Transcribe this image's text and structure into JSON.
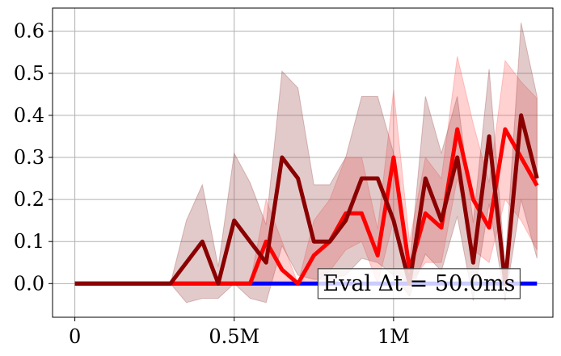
{
  "chart_data": {
    "type": "line",
    "title": "",
    "xlabel": "",
    "ylabel": "",
    "xlim": [
      -70000,
      1500000
    ],
    "ylim": [
      -0.08,
      0.655
    ],
    "grid": true,
    "x_ticks": [
      {
        "value": 0,
        "label": "0"
      },
      {
        "value": 500000,
        "label": "0.5M"
      },
      {
        "value": 1000000,
        "label": "1M"
      }
    ],
    "y_ticks": [
      {
        "value": 0.0,
        "label": "0.0"
      },
      {
        "value": 0.1,
        "label": "0.1"
      },
      {
        "value": 0.2,
        "label": "0.2"
      },
      {
        "value": 0.3,
        "label": "0.3"
      },
      {
        "value": 0.4,
        "label": "0.4"
      },
      {
        "value": 0.5,
        "label": "0.5"
      },
      {
        "value": 0.6,
        "label": "0.6"
      }
    ],
    "annotation": {
      "text": "Eval Δt = 50.0ms",
      "x": 1080000,
      "y": 0.0
    },
    "series": [
      {
        "color": "#0000ff",
        "band_color": "#0000ff",
        "x": [
          0,
          50000,
          100000,
          150000,
          200000,
          250000,
          300000,
          350000,
          400000,
          450000,
          500000,
          550000,
          600000,
          650000,
          700000,
          750000,
          800000,
          850000,
          900000,
          950000,
          1000000,
          1050000,
          1100000,
          1150000,
          1200000,
          1250000,
          1300000,
          1350000,
          1400000,
          1450000
        ],
        "values": [
          0,
          0,
          0,
          0,
          0,
          0,
          0,
          0,
          0,
          0,
          0,
          0,
          0,
          0,
          0,
          0,
          0,
          0,
          0,
          0,
          0,
          0,
          0,
          0,
          0,
          0,
          0,
          0,
          0,
          0
        ],
        "lower": [
          0,
          0,
          0,
          0,
          0,
          0,
          0,
          0,
          0,
          0,
          0,
          0,
          0,
          0,
          0,
          0,
          0,
          0,
          0,
          0,
          0,
          0,
          0,
          0,
          0,
          0,
          0,
          0,
          0,
          0
        ],
        "upper": [
          0,
          0,
          0,
          0,
          0,
          0,
          0,
          0,
          0,
          0,
          0,
          0,
          0,
          0,
          0,
          0,
          0,
          0,
          0,
          0,
          0,
          0,
          0,
          0,
          0,
          0,
          0,
          0,
          0,
          0
        ]
      },
      {
        "color": "#ff0000",
        "band_color": "#ff6666",
        "x": [
          0,
          50000,
          100000,
          150000,
          200000,
          250000,
          300000,
          350000,
          400000,
          450000,
          500000,
          550000,
          600000,
          650000,
          700000,
          750000,
          800000,
          850000,
          900000,
          950000,
          1000000,
          1050000,
          1100000,
          1150000,
          1200000,
          1250000,
          1300000,
          1350000,
          1400000,
          1450000
        ],
        "values": [
          0,
          0,
          0,
          0,
          0,
          0,
          0,
          0,
          0,
          0,
          0,
          0,
          0.1,
          0.033,
          0,
          0.067,
          0.1,
          0.167,
          0.167,
          0.067,
          0.3,
          0.033,
          0.167,
          0.133,
          0.367,
          0.2,
          0.133,
          0.367,
          0.3,
          0.233
        ],
        "lower": [
          0,
          0,
          0,
          0,
          0,
          0,
          0,
          0,
          0,
          0,
          0,
          0,
          0,
          0,
          0,
          0,
          0.03,
          0.08,
          0.1,
          0,
          0.15,
          0,
          0.05,
          0.05,
          0.25,
          0.08,
          0.05,
          0.2,
          0.15,
          0.08
        ],
        "upper": [
          0,
          0,
          0,
          0,
          0,
          0,
          0,
          0,
          0,
          0,
          0,
          0,
          0.2,
          0.1,
          0,
          0.15,
          0.2,
          0.3,
          0.3,
          0.13,
          0.46,
          0.1,
          0.3,
          0.25,
          0.54,
          0.38,
          0.24,
          0.53,
          0.48,
          0.44
        ]
      },
      {
        "color": "#8b0000",
        "band_color": "#a05050",
        "x": [
          0,
          50000,
          100000,
          150000,
          200000,
          250000,
          300000,
          350000,
          400000,
          450000,
          500000,
          550000,
          600000,
          650000,
          700000,
          750000,
          800000,
          850000,
          900000,
          950000,
          1000000,
          1050000,
          1100000,
          1150000,
          1200000,
          1250000,
          1300000,
          1350000,
          1400000,
          1450000
        ],
        "values": [
          0,
          0,
          0,
          0,
          0,
          0,
          0,
          0.05,
          0.1,
          0,
          0.15,
          0.1,
          0.05,
          0.3,
          0.25,
          0.1,
          0.1,
          0.15,
          0.25,
          0.25,
          0.15,
          0,
          0.25,
          0.15,
          0.3,
          0.05,
          0.35,
          0,
          0.4,
          0.25
        ],
        "lower": [
          0,
          0,
          0,
          0,
          0,
          0,
          0,
          -0.045,
          -0.035,
          -0.035,
          0,
          -0.035,
          -0.045,
          0.09,
          0.02,
          0.01,
          0.01,
          0.02,
          0.06,
          0.05,
          0.02,
          -0.03,
          0.07,
          0.03,
          0.16,
          -0.04,
          0.19,
          -0.04,
          0.2,
          0.06
        ],
        "upper": [
          0,
          0,
          0,
          0,
          0,
          0,
          0,
          0.15,
          0.235,
          0.04,
          0.31,
          0.24,
          0.14,
          0.505,
          0.465,
          0.235,
          0.235,
          0.3,
          0.445,
          0.445,
          0.31,
          0.04,
          0.445,
          0.31,
          0.445,
          0.145,
          0.51,
          0.04,
          0.62,
          0.445
        ]
      }
    ]
  }
}
